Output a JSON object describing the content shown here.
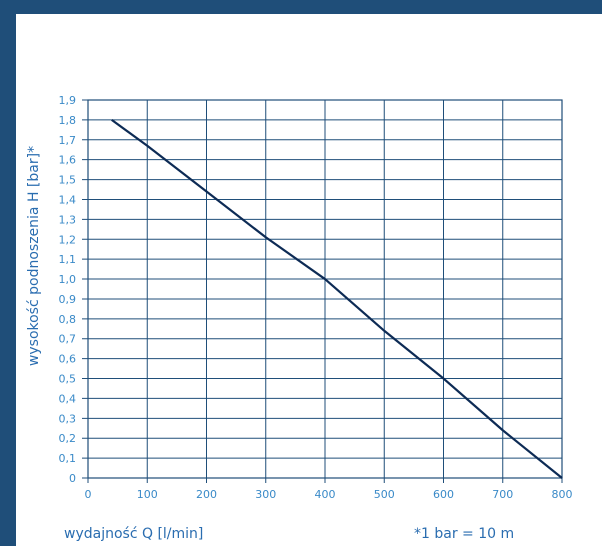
{
  "chart_data": {
    "type": "line",
    "xlabel": "wydajność Q [l/min]",
    "ylabel": "wysokość podnoszenia H [bar]*",
    "note": "*1 bar = 10 m",
    "xlim": [
      0,
      800
    ],
    "ylim": [
      0,
      1.9
    ],
    "x_ticks": [
      "0",
      "100",
      "200",
      "300",
      "400",
      "500",
      "600",
      "700",
      "800"
    ],
    "y_ticks": [
      "0",
      "0,1",
      "0,2",
      "0,3",
      "0,4",
      "0,5",
      "0,6",
      "0,7",
      "0,8",
      "0,9",
      "1,0",
      "1,1",
      "1,2",
      "1,3",
      "1,4",
      "1,5",
      "1,6",
      "1,7",
      "1,8",
      "1,9"
    ],
    "grid": true,
    "series": [
      {
        "x": [
          40,
          100,
          200,
          300,
          400,
          500,
          600,
          700,
          800
        ],
        "y": [
          1.8,
          1.67,
          1.44,
          1.21,
          1.0,
          0.74,
          0.5,
          0.24,
          0.0
        ]
      }
    ],
    "colors": {
      "line": "#0d2b55",
      "grid": "#1f4e79",
      "tick_text": "#3a8ac8",
      "frame": "#1f4e79"
    }
  }
}
